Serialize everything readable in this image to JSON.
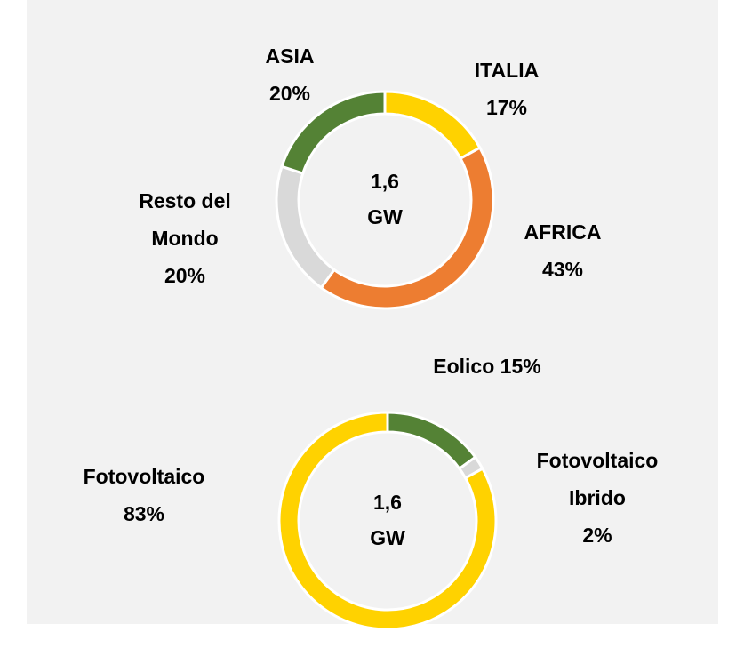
{
  "chart_data": [
    {
      "type": "donut",
      "center_label": [
        "1,6",
        "GW"
      ],
      "categories": [
        "ITALIA",
        "AFRICA",
        "Resto del Mondo",
        "ASIA"
      ],
      "values": [
        17,
        43,
        20,
        20
      ],
      "value_labels": [
        "17%",
        "43%",
        "20%",
        "20%"
      ],
      "colors": [
        "#FFD200",
        "#ED7D31",
        "#D9D9D9",
        "#548235"
      ]
    },
    {
      "type": "donut",
      "center_label": [
        "1,6",
        "GW"
      ],
      "categories": [
        "Eolico",
        "Fotovoltaico Ibrido",
        "Fotovoltaico"
      ],
      "values": [
        15,
        2,
        83
      ],
      "value_labels": [
        "15%",
        "2%",
        "83%"
      ],
      "colors": [
        "#548235",
        "#D9D9D9",
        "#FFD200"
      ]
    }
  ]
}
